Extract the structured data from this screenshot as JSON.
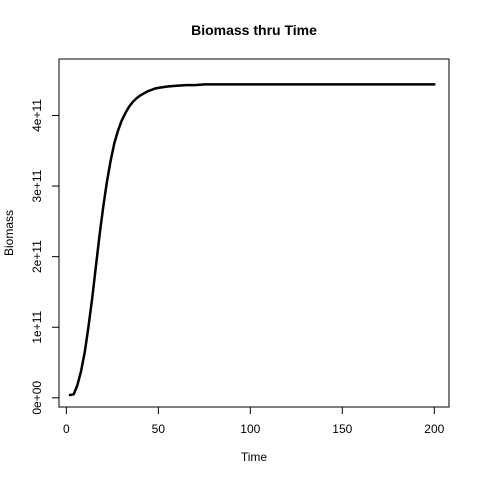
{
  "chart_data": {
    "type": "line",
    "title": "Biomass thru Time",
    "xlabel": "Time",
    "ylabel": "Biomass",
    "xlim": [
      -4,
      208
    ],
    "ylim": [
      -13000000000.0,
      480000000000.0
    ],
    "x_ticks": [
      0,
      50,
      100,
      150,
      200
    ],
    "x_tick_labels": [
      "0",
      "50",
      "100",
      "150",
      "200"
    ],
    "y_ticks": [
      0,
      100000000000.0,
      200000000000.0,
      300000000000.0,
      400000000000.0
    ],
    "y_tick_labels": [
      "0e+00",
      "1e+11",
      "2e+11",
      "3e+11",
      "4e+11"
    ],
    "grid": false,
    "legend": "none",
    "series": [
      {
        "color": "#000000",
        "x": [
          2,
          4,
          6,
          8,
          10,
          12,
          14,
          16,
          18,
          20,
          22,
          24,
          26,
          28,
          30,
          32,
          34,
          36,
          38,
          40,
          42,
          44,
          46,
          48,
          50,
          55,
          60,
          65,
          70,
          75,
          80,
          90,
          100,
          120,
          140,
          160,
          180,
          200
        ],
        "y": [
          4000000000.0,
          5000000000.0,
          18000000000.0,
          38000000000.0,
          65000000000.0,
          100000000000.0,
          140000000000.0,
          185000000000.0,
          230000000000.0,
          270000000000.0,
          305000000000.0,
          335000000000.0,
          360000000000.0,
          378000000000.0,
          392000000000.0,
          403000000000.0,
          412000000000.0,
          419000000000.0,
          424000000000.0,
          428000000000.0,
          431000000000.0,
          434000000000.0,
          436000000000.0,
          438000000000.0,
          439000000000.0,
          441000000000.0,
          442000000000.0,
          443000000000.0,
          443000000000.0,
          444000000000.0,
          444000000000.0,
          444000000000.0,
          444000000000.0,
          444000000000.0,
          444000000000.0,
          444000000000.0,
          444000000000.0,
          444000000000.0
        ]
      }
    ]
  }
}
